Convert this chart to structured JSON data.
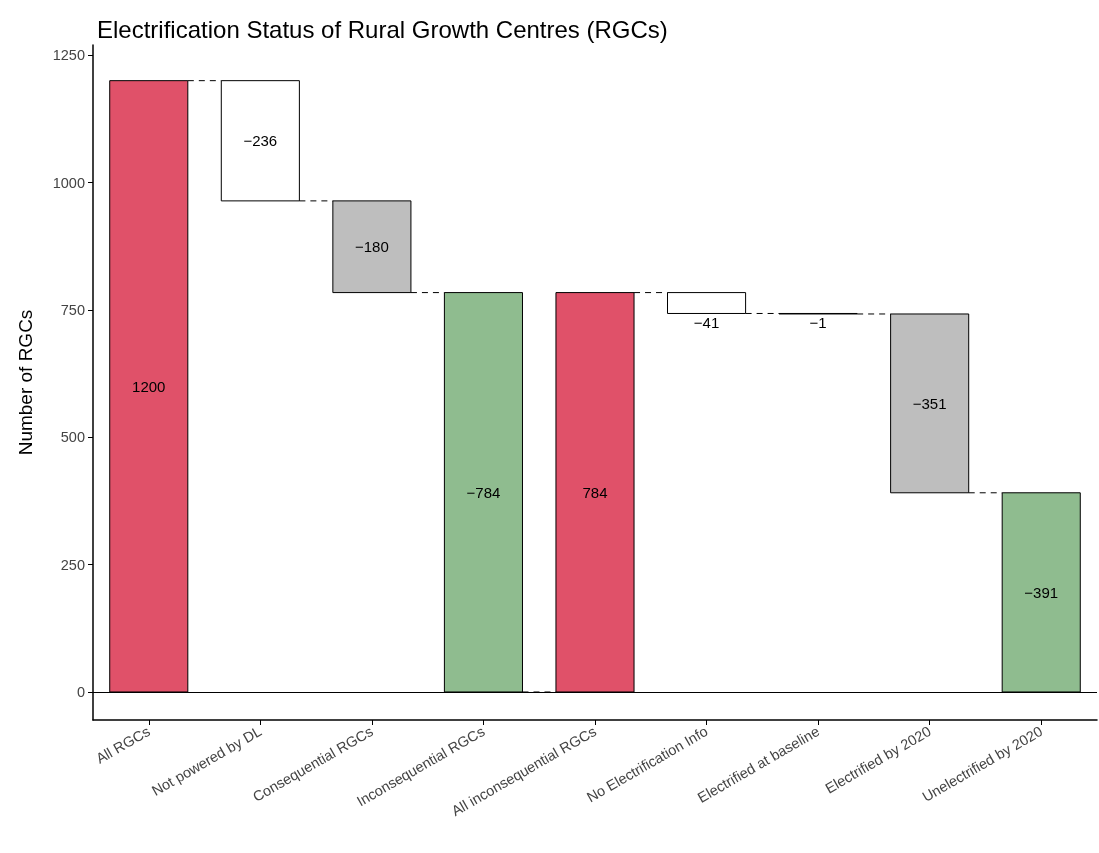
{
  "chart_data": {
    "type": "bar",
    "title": "Electrification Status of Rural Growth Centres (RGCs)",
    "ylabel": "Number of RGCs",
    "categories": [
      "All RGCs",
      "Not powered by DL",
      "Consequential RGCs",
      "Inconsequential RGCs",
      "All inconsequential RGCs",
      "No Electrification Info",
      "Electrified at baseline",
      "Electrified by 2020",
      "Unelectrified by 2020"
    ],
    "values": [
      1200,
      -236,
      -180,
      -784,
      784,
      -41,
      -1,
      -351,
      -391
    ],
    "base": [
      0,
      1200,
      964,
      784,
      0,
      784,
      743,
      742,
      391
    ],
    "colors": [
      "#e05169",
      "#ffffff",
      "#bebebe",
      "#8fbc8f",
      "#e05169",
      "#ffffff",
      "#ffffff",
      "#bebebe",
      "#8fbc8f"
    ],
    "value_labels": [
      "1200",
      "−236",
      "−180",
      "−784",
      "784",
      "−41",
      "−1",
      "−351",
      "−391"
    ],
    "ylim": [
      -55,
      1270
    ],
    "yticks": [
      0,
      250,
      500,
      750,
      1000,
      1250
    ],
    "ref_lines": [
      {
        "axis": "y",
        "value": 0,
        "color": "#000000"
      }
    ],
    "grid": false
  }
}
